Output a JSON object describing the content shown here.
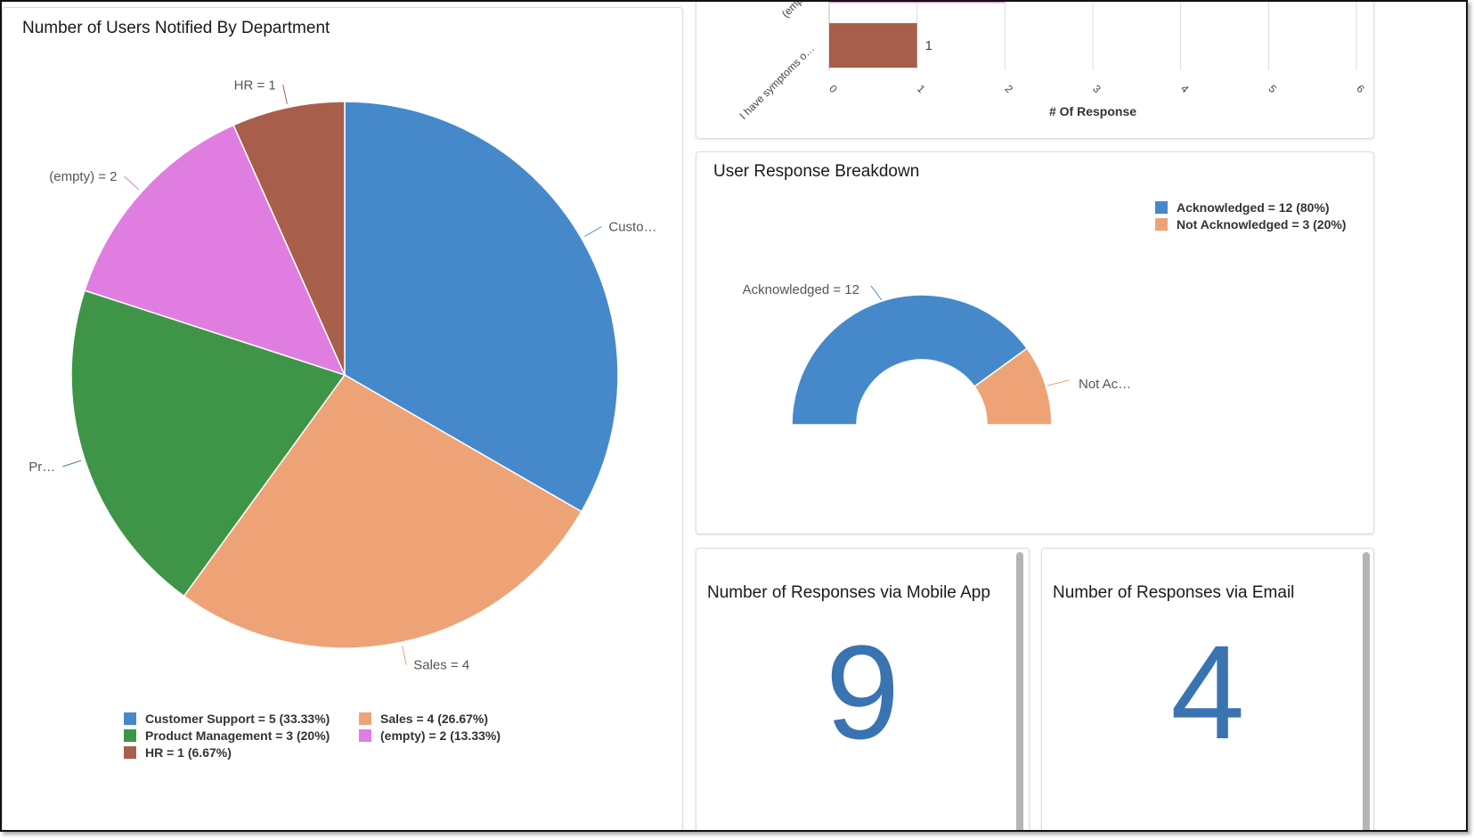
{
  "department_card": {
    "title": "Number of Users Notified By Department"
  },
  "symptom_card": {
    "xlabel": "# Of Response"
  },
  "breakdown_card": {
    "title": "User Response Breakdown"
  },
  "mobile_card": {
    "title": "Number of Responses via Mobile App",
    "value": "9"
  },
  "email_card": {
    "title": "Number of Responses via Email",
    "value": "4"
  },
  "chart_data": [
    {
      "type": "pie",
      "title": "Number of Users Notified By Department",
      "categories": [
        "Customer Support",
        "Sales",
        "Product Management",
        "(empty)",
        "HR"
      ],
      "values": [
        5,
        4,
        3,
        2,
        1
      ],
      "colors": [
        "#4589cb",
        "#eea377",
        "#3f9547",
        "#df7ee0",
        "#a75f4b"
      ],
      "slice_labels": [
        "Custo…",
        "Sales = 4",
        "Pr…",
        "(empty) = 2",
        "HR = 1"
      ],
      "legend": [
        "Customer Support = 5 (33.33%)",
        "Sales = 4 (26.67%)",
        "Product Management = 3 (20%)",
        "(empty) = 2 (13.33%)",
        "HR = 1 (6.67%)"
      ],
      "legend_position": "bottom"
    },
    {
      "type": "bar",
      "orientation": "horizontal",
      "categories": [
        "(emp",
        "I have symptoms o…"
      ],
      "values": [
        2,
        1
      ],
      "colors": [
        "#df7ee0",
        "#a75f4b"
      ],
      "data_labels": [
        "",
        "1"
      ],
      "xlabel": "# Of Response",
      "xticks": [
        "0",
        "1",
        "2",
        "3",
        "4",
        "5",
        "6"
      ],
      "xlim": [
        0,
        6
      ],
      "grid": true
    },
    {
      "type": "pie",
      "style": "semi-donut",
      "title": "User Response Breakdown",
      "categories": [
        "Acknowledged",
        "Not Acknowledged"
      ],
      "values": [
        12,
        3
      ],
      "colors": [
        "#4589cb",
        "#eea377"
      ],
      "slice_labels": [
        "Acknowledged = 12",
        "Not Ac…"
      ],
      "legend": [
        "Acknowledged = 12 (80%)",
        "Not Acknowledged = 3 (20%)"
      ],
      "legend_position": "top-right"
    }
  ]
}
